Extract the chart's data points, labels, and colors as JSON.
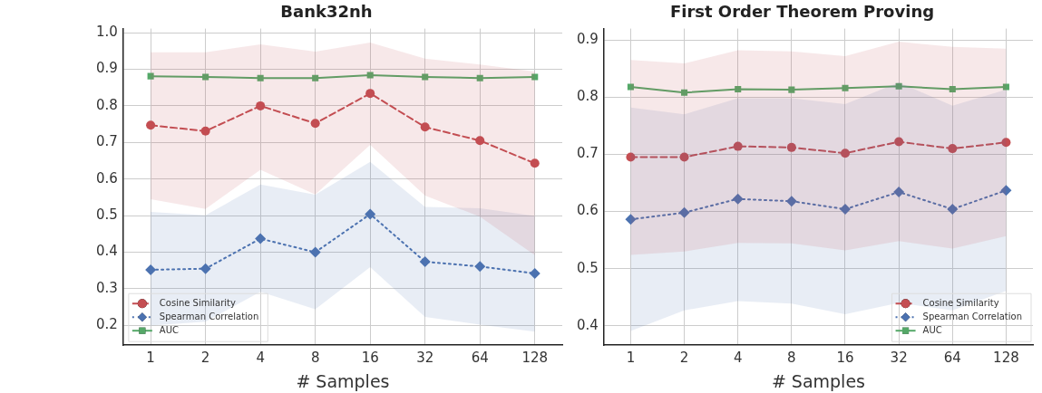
{
  "chart_data": [
    {
      "type": "line",
      "title": "Bank32nh",
      "xlabel": "# Samples",
      "categories": [
        "1",
        "2",
        "4",
        "8",
        "16",
        "32",
        "64",
        "128"
      ],
      "ylim": [
        0.146,
        1.011
      ],
      "yticks": [
        {
          "value": 0.2,
          "label": "0.2"
        },
        {
          "value": 0.3,
          "label": "0.3"
        },
        {
          "value": 0.4,
          "label": "0.4"
        },
        {
          "value": 0.5,
          "label": "0.5"
        },
        {
          "value": 0.6,
          "label": "0.6"
        },
        {
          "value": 0.7,
          "label": "0.7"
        },
        {
          "value": 0.8,
          "label": "0.8"
        },
        {
          "value": 0.9,
          "label": "0.9"
        },
        {
          "value": 1.0,
          "label": "1.0"
        }
      ],
      "grid": true,
      "legend": "bottom left",
      "series": [
        {
          "name": "Cosine Similarity",
          "color": "#c44e52",
          "marker": "circle",
          "line_style": "dashed",
          "values": [
            0.747,
            0.731,
            0.8,
            0.752,
            0.834,
            0.742,
            0.705,
            0.643
          ],
          "lower": [
            0.545,
            0.518,
            0.625,
            0.558,
            0.693,
            0.555,
            0.497,
            0.392
          ],
          "upper": [
            0.946,
            0.946,
            0.968,
            0.948,
            0.973,
            0.929,
            0.913,
            0.894
          ]
        },
        {
          "name": "Spearman Correlation",
          "color": "#4c72b0",
          "marker": "diamond",
          "line_style": "dotted",
          "values": [
            0.352,
            0.355,
            0.437,
            0.4,
            0.504,
            0.374,
            0.361,
            0.342
          ],
          "lower": [
            0.2,
            0.21,
            0.292,
            0.244,
            0.359,
            0.223,
            0.202,
            0.183
          ],
          "upper": [
            0.51,
            0.501,
            0.585,
            0.557,
            0.647,
            0.524,
            0.52,
            0.499
          ]
        },
        {
          "name": "AUC",
          "color": "#55a868",
          "marker": "square",
          "line_style": "solid",
          "values": [
            0.881,
            0.879,
            0.876,
            0.876,
            0.884,
            0.879,
            0.876,
            0.879
          ]
        }
      ]
    },
    {
      "type": "line",
      "title": "First Order Theorem Proving",
      "xlabel": "# Samples",
      "categories": [
        "1",
        "2",
        "4",
        "8",
        "16",
        "32",
        "64",
        "128"
      ],
      "ylim": [
        0.366,
        0.92
      ],
      "yticks": [
        {
          "value": 0.4,
          "label": "0.4"
        },
        {
          "value": 0.5,
          "label": "0.5"
        },
        {
          "value": 0.6,
          "label": "0.6"
        },
        {
          "value": 0.7,
          "label": "0.7"
        },
        {
          "value": 0.8,
          "label": "0.8"
        },
        {
          "value": 0.9,
          "label": "0.9"
        }
      ],
      "grid": true,
      "legend": "bottom right",
      "series": [
        {
          "name": "Cosine Similarity",
          "color": "#c44e52",
          "marker": "circle",
          "line_style": "dashed",
          "values": [
            0.695,
            0.695,
            0.714,
            0.712,
            0.702,
            0.722,
            0.71,
            0.721
          ],
          "lower": [
            0.524,
            0.53,
            0.545,
            0.544,
            0.532,
            0.548,
            0.535,
            0.557
          ],
          "upper": [
            0.865,
            0.859,
            0.882,
            0.88,
            0.872,
            0.897,
            0.888,
            0.885
          ]
        },
        {
          "name": "Spearman Correlation",
          "color": "#4c72b0",
          "marker": "diamond",
          "line_style": "dotted",
          "values": [
            0.586,
            0.598,
            0.622,
            0.618,
            0.604,
            0.634,
            0.604,
            0.637
          ],
          "lower": [
            0.391,
            0.427,
            0.443,
            0.439,
            0.42,
            0.44,
            0.427,
            0.461
          ],
          "upper": [
            0.782,
            0.77,
            0.798,
            0.798,
            0.788,
            0.826,
            0.785,
            0.813
          ]
        },
        {
          "name": "AUC",
          "color": "#55a868",
          "marker": "square",
          "line_style": "solid",
          "values": [
            0.818,
            0.808,
            0.814,
            0.813,
            0.816,
            0.819,
            0.814,
            0.818
          ]
        }
      ]
    }
  ]
}
